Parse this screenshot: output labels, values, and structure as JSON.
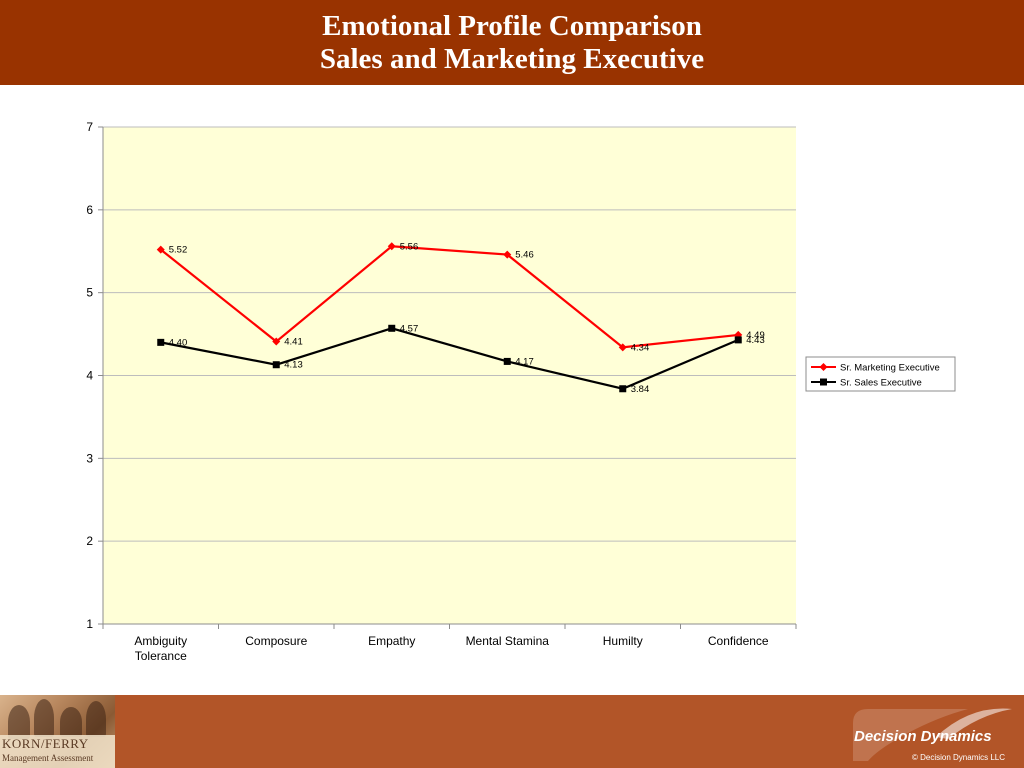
{
  "header": {
    "title_line1": "Emotional Profile Comparison",
    "title_line2": "Sales and Marketing Executive",
    "background": "#993300"
  },
  "chart_data": {
    "type": "line",
    "categories": [
      "Ambiguity Tolerance",
      "Composure",
      "Empathy",
      "Mental Stamina",
      "Humilty",
      "Confidence"
    ],
    "series": [
      {
        "name": "Sr. Marketing Executive",
        "values": [
          5.52,
          4.41,
          5.56,
          5.46,
          4.34,
          4.49
        ],
        "labels": [
          "5.52",
          "4.41",
          "5.56",
          "5.46",
          "4.34",
          "4.49"
        ],
        "color": "#ff0000",
        "marker": "diamond"
      },
      {
        "name": "Sr. Sales Executive",
        "values": [
          4.4,
          4.13,
          4.57,
          4.17,
          3.84,
          4.43
        ],
        "labels": [
          "4.40",
          "4.13",
          "4.57",
          "4.17",
          "3.84",
          "4.43"
        ],
        "color": "#000000",
        "marker": "square"
      }
    ],
    "ylim": [
      1,
      7
    ],
    "yticks": [
      "1",
      "2",
      "3",
      "4",
      "5",
      "6",
      "7"
    ],
    "grid": true,
    "legend": "right",
    "plot_background": "#ffffd7"
  },
  "footer": {
    "left_logo_name": "KORN/FERRY",
    "left_logo_sub": "Management Assessment",
    "right_logo_name": "Decision Dynamics",
    "copyright": "© Decision Dynamics LLC",
    "background": "#b25528"
  }
}
